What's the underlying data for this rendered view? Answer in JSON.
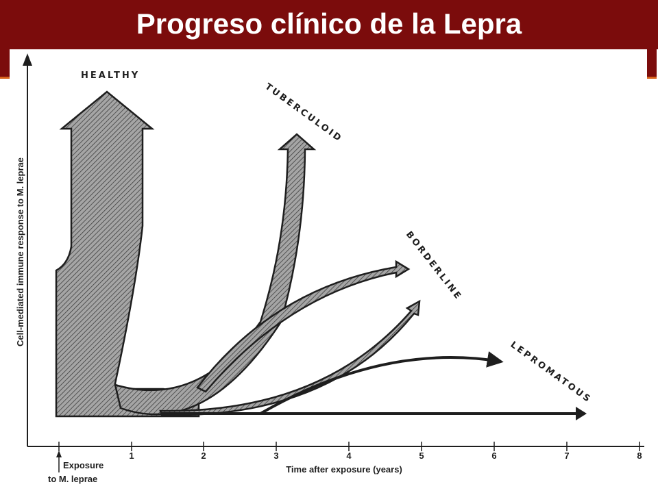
{
  "title": "Progreso clínico de la Lepra",
  "colors": {
    "title_bar": "#7b0c0c",
    "title_accent": "#d8641c",
    "ink": "#1e1e1e",
    "hatch_fill": "#9a9a9a"
  },
  "axes": {
    "y_label": "Cell-mediated immune response to M. leprae",
    "x_label": "Time after exposure (years)",
    "x_ticks": [
      "1",
      "2",
      "3",
      "4",
      "5",
      "6",
      "7",
      "8"
    ],
    "exposure_label_line1": "Exposure",
    "exposure_label_line2": "to M. leprae"
  },
  "outcomes": {
    "healthy": "HEALTHY",
    "tuberculoid": "TUBERCULOID",
    "borderline": "BORDERLINE",
    "lepromatous": "LEPROMATOUS"
  }
}
